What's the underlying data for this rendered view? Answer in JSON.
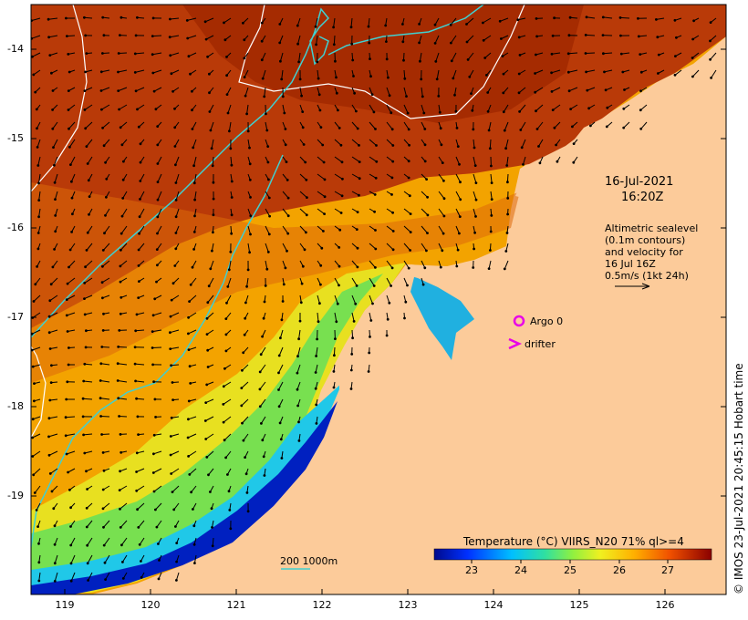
{
  "date_line1": "16-Jul-2021",
  "date_line2": "16:20Z",
  "alti": {
    "line1": "Altimetric sealevel",
    "line2": "(0.1m contours)",
    "line3": "and velocity for",
    "line4": "16 Jul 16Z",
    "line5": "0.5m/s (1kt 24h)"
  },
  "argo_label": "Argo 0",
  "drifter_label": "drifter",
  "scale_label": "200  1000m",
  "colorbar": {
    "title": "Temperature (°C) VIIRS_N20 71% ql>=4",
    "ticks": [
      "23",
      "24",
      "25",
      "26",
      "27"
    ]
  },
  "x_ticks": [
    "119",
    "120",
    "121",
    "122",
    "123",
    "124",
    "125",
    "126"
  ],
  "y_ticks": [
    "-14",
    "-15",
    "-16",
    "-17",
    "-18",
    "-19"
  ],
  "side_text": "© IMOS 23-Jul-2021 20:45:15 Hobart time",
  "colors": {
    "land": "#fccb9a",
    "warm": "#b93a08",
    "iso_contour": "#40d0d0",
    "argo_drifter": "#e800e8"
  }
}
